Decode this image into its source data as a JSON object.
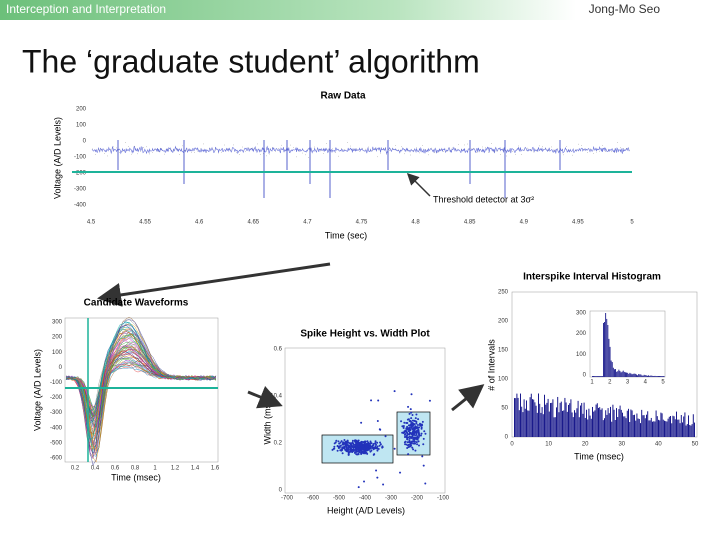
{
  "header": {
    "left": "Interception and Interpretation",
    "right": "Jong-Mo Seo"
  },
  "title": "The ‘graduate student’ algorithm",
  "raw_data": {
    "title": "Raw Data",
    "y_label": "Voltage (A/D Levels)",
    "x_label": "Time (sec)",
    "yticks": [
      "200",
      "100",
      "0",
      "-100",
      "-200",
      "-300",
      "-400"
    ],
    "xticks": [
      "4.5",
      "4.55",
      "4.6",
      "4.65",
      "4.7",
      "4.75",
      "4.8",
      "4.85",
      "4.9",
      "4.95",
      "5"
    ],
    "annotation": "Threshold detector at 3σ²"
  },
  "waveforms": {
    "title": "Candidate Waveforms",
    "y_label": "Voltage (A/D Levels)",
    "x_label": "Time (msec)",
    "yticks": [
      "300",
      "200",
      "100",
      "0",
      "-100",
      "-200",
      "-300",
      "-400",
      "-500",
      "-600"
    ],
    "xticks": [
      "0.2",
      "0.4",
      "0.6",
      "0.8",
      "1",
      "1.2",
      "1.4",
      "1.6"
    ]
  },
  "scatter": {
    "title": "Spike Height vs. Width Plot",
    "y_label": "Width (msec)",
    "x_label": "Height (A/D Levels)",
    "yticks": [
      "0.6",
      "0.4",
      "0.2",
      "0"
    ],
    "xticks": [
      "-700",
      "-600",
      "-500",
      "-400",
      "-300",
      "-200",
      "-100"
    ]
  },
  "isi": {
    "title": "Interspike Interval Histogram",
    "y_label": "# of Intervals",
    "x_label": "Time (msec)",
    "yticks": [
      "250",
      "200",
      "150",
      "100",
      "50",
      "0"
    ],
    "xticks": [
      "0",
      "10",
      "20",
      "30",
      "40",
      "50"
    ],
    "inset_yticks": [
      "300",
      "200",
      "100",
      "0"
    ],
    "inset_xticks": [
      "1",
      "2",
      "3",
      "4",
      "5"
    ]
  }
}
